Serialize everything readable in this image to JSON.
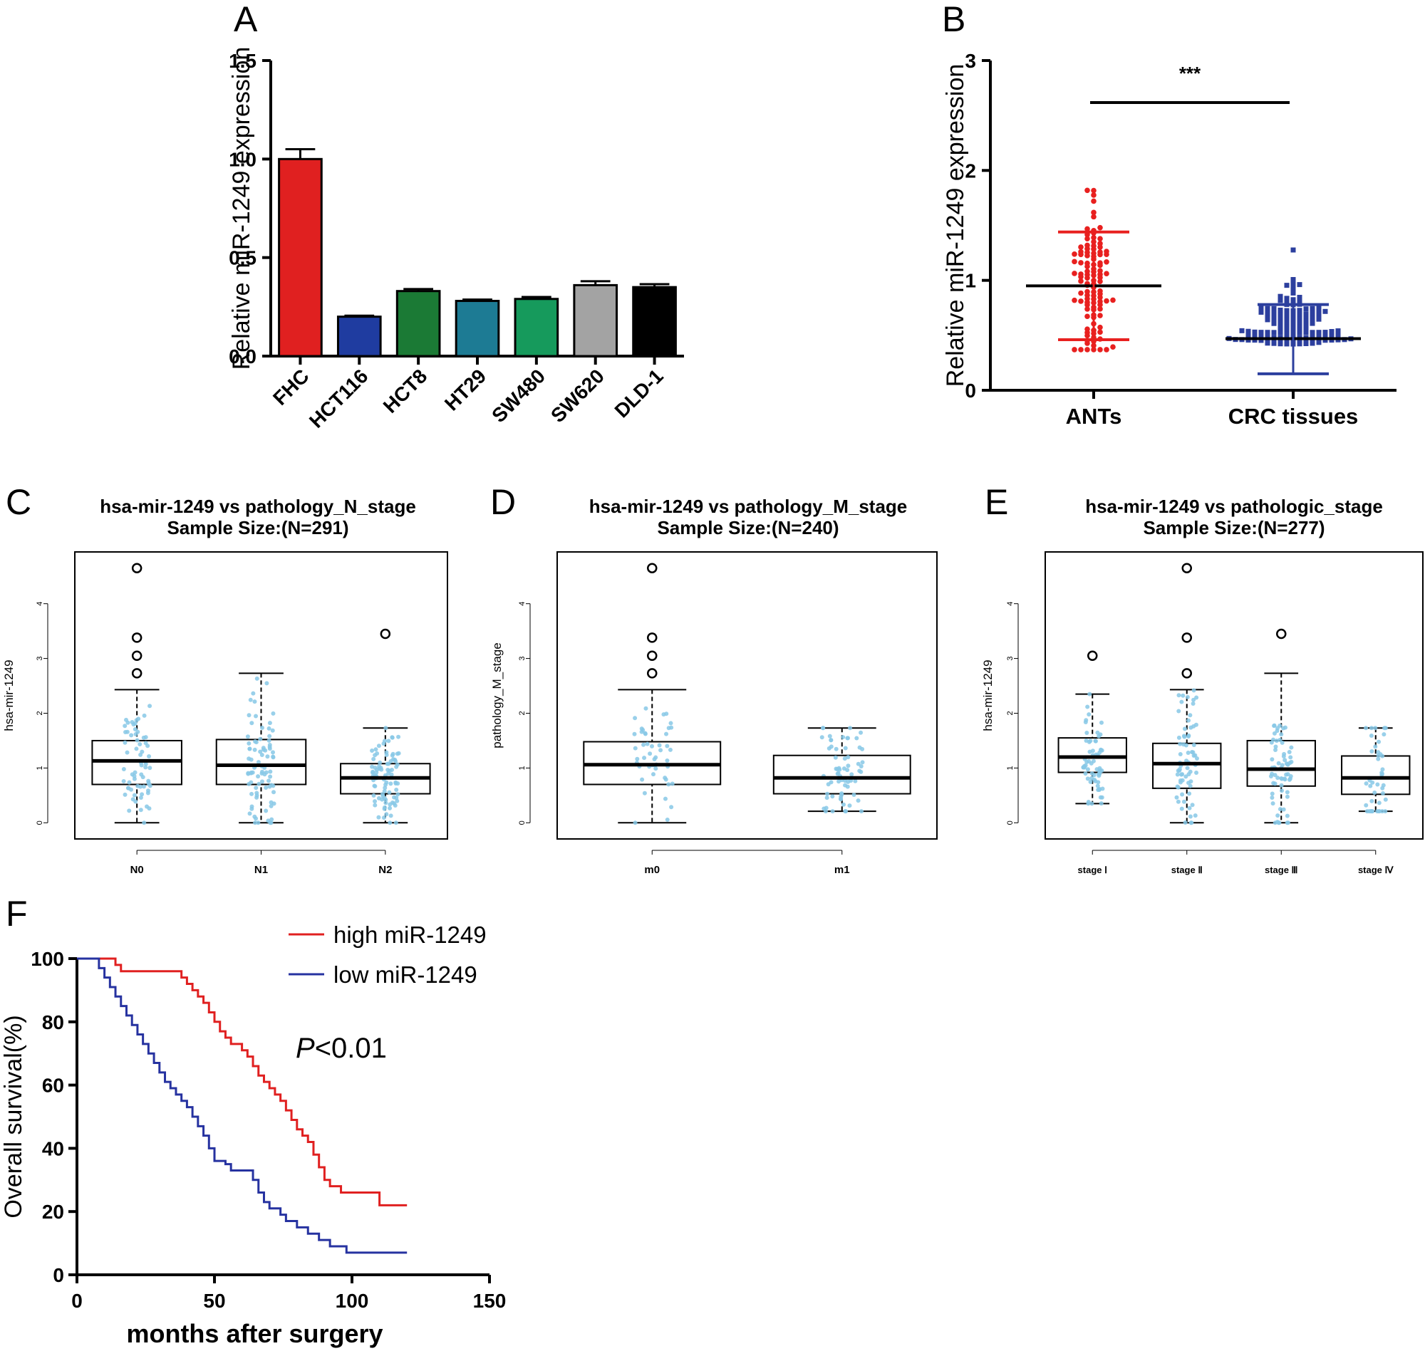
{
  "panels": {
    "A": {
      "letter": "A"
    },
    "B": {
      "letter": "B"
    },
    "C": {
      "letter": "C"
    },
    "D": {
      "letter": "D"
    },
    "E": {
      "letter": "E"
    },
    "F": {
      "letter": "F"
    }
  },
  "chart_data": [
    {
      "id": "A",
      "type": "bar",
      "title": "",
      "xlabel": "",
      "ylabel": "Relative miR-1249 expression",
      "categories": [
        "FHC",
        "HCT116",
        "HCT8",
        "HT29",
        "SW480",
        "SW620",
        "DLD-1"
      ],
      "values": [
        1.0,
        0.2,
        0.33,
        0.28,
        0.29,
        0.36,
        0.35
      ],
      "errors": [
        0.05,
        0.005,
        0.01,
        0.007,
        0.01,
        0.02,
        0.015
      ],
      "colors": [
        "#e02020",
        "#1f3ca0",
        "#1b7a35",
        "#1d7b94",
        "#169a5c",
        "#a3a3a3",
        "#000000"
      ],
      "ylim": [
        0,
        1.5
      ],
      "yticks": [
        "0.0",
        "0.5",
        "1.0",
        "1.5"
      ],
      "grid": false
    },
    {
      "id": "B",
      "type": "scatter",
      "title": "",
      "xlabel": "",
      "ylabel": "Relative miR-1249 expression",
      "categories": [
        "ANTs",
        "CRC tissues"
      ],
      "series": [
        {
          "category": "ANTs",
          "color": "#e8201f",
          "mean": 0.95,
          "sd_low": 0.46,
          "sd_high": 1.44
        },
        {
          "category": "CRC tissues",
          "color": "#2c3f9e",
          "mean": 0.47,
          "sd_low": 0.15,
          "sd_high": 0.78
        }
      ],
      "ylim": [
        0,
        3
      ],
      "yticks": [
        "0",
        "1",
        "2",
        "3"
      ],
      "annotation": "***"
    },
    {
      "id": "C",
      "type": "box",
      "title_line1": "hsa-mir-1249 vs pathology_N_stage",
      "title_line2": "Sample Size:(N=291)",
      "ylabel": "hsa-mir-1249",
      "yticks": [
        "0",
        "1",
        "2",
        "3",
        "4"
      ],
      "ylim": [
        -0.1,
        4.75
      ],
      "categories": [
        "N0",
        "N1",
        "N2"
      ],
      "boxes": [
        {
          "min": 0,
          "q1": 0.7,
          "median": 1.13,
          "q3": 1.5,
          "max": 2.43,
          "outliers": [
            2.73,
            3.05,
            3.38,
            4.65
          ]
        },
        {
          "min": 0,
          "q1": 0.7,
          "median": 1.05,
          "q3": 1.52,
          "max": 2.73,
          "outliers": []
        },
        {
          "min": 0,
          "q1": 0.53,
          "median": 0.82,
          "q3": 1.08,
          "max": 1.73,
          "outliers": [
            3.45
          ]
        }
      ]
    },
    {
      "id": "D",
      "type": "box",
      "title_line1": "hsa-mir-1249 vs pathology_M_stage",
      "title_line2": "Sample Size:(N=240)",
      "ylabel": "pathology_M_stage",
      "yticks": [
        "0",
        "1",
        "2",
        "3",
        "4"
      ],
      "ylim": [
        -0.1,
        4.75
      ],
      "categories": [
        "m0",
        "m1"
      ],
      "boxes": [
        {
          "min": 0,
          "q1": 0.7,
          "median": 1.06,
          "q3": 1.48,
          "max": 2.43,
          "outliers": [
            2.73,
            3.05,
            3.38,
            4.65
          ]
        },
        {
          "min": 0.21,
          "q1": 0.53,
          "median": 0.82,
          "q3": 1.23,
          "max": 1.73,
          "outliers": []
        }
      ]
    },
    {
      "id": "E",
      "type": "box",
      "title_line1": "hsa-mir-1249 vs pathologic_stage",
      "title_line2": "Sample Size:(N=277)",
      "ylabel": "hsa-mir-1249",
      "yticks": [
        "0",
        "1",
        "2",
        "3",
        "4"
      ],
      "ylim": [
        -0.1,
        4.75
      ],
      "categories": [
        "stage Ⅰ",
        "stage Ⅱ",
        "stage Ⅲ",
        "stage Ⅳ"
      ],
      "boxes": [
        {
          "min": 0.35,
          "q1": 0.92,
          "median": 1.2,
          "q3": 1.55,
          "max": 2.35,
          "outliers": [
            3.05
          ]
        },
        {
          "min": 0,
          "q1": 0.63,
          "median": 1.08,
          "q3": 1.45,
          "max": 2.43,
          "outliers": [
            2.73,
            3.38,
            4.65
          ]
        },
        {
          "min": 0,
          "q1": 0.67,
          "median": 0.98,
          "q3": 1.5,
          "max": 2.73,
          "outliers": [
            3.45
          ]
        },
        {
          "min": 0.21,
          "q1": 0.52,
          "median": 0.82,
          "q3": 1.22,
          "max": 1.73,
          "outliers": []
        }
      ]
    },
    {
      "id": "F",
      "type": "line",
      "title": "",
      "xlabel": "months after surgery",
      "ylabel": "Overall survival(%)",
      "xlim": [
        0,
        150
      ],
      "ylim": [
        0,
        100
      ],
      "xticks": [
        "0",
        "50",
        "100",
        "150"
      ],
      "yticks": [
        "0",
        "20",
        "40",
        "60",
        "80",
        "100"
      ],
      "annotation_italic": "P",
      "annotation_rest": "<0.01",
      "series": [
        {
          "name": "high miR-1249",
          "color": "#e02020",
          "x": [
            0,
            7,
            14,
            16,
            36,
            38,
            40,
            42,
            44,
            46,
            48,
            50,
            52,
            54,
            56,
            58,
            60,
            62,
            64,
            66,
            68,
            70,
            72,
            74,
            76,
            78,
            80,
            82,
            84,
            86,
            88,
            90,
            92,
            96,
            100,
            110,
            120
          ],
          "y": [
            100,
            100,
            98,
            96,
            96,
            94,
            92,
            90,
            88,
            86,
            83,
            80,
            77,
            75,
            73,
            73,
            71,
            69,
            66,
            63,
            61,
            59,
            57,
            55,
            52,
            49,
            46,
            44,
            42,
            38,
            34,
            30,
            28,
            26,
            26,
            22,
            22
          ]
        },
        {
          "name": "low miR-1249",
          "color": "#2632a0",
          "x": [
            0,
            6,
            8,
            10,
            12,
            14,
            16,
            18,
            20,
            22,
            24,
            26,
            28,
            30,
            32,
            34,
            36,
            38,
            40,
            42,
            44,
            46,
            48,
            50,
            54,
            56,
            60,
            64,
            66,
            68,
            70,
            74,
            76,
            80,
            84,
            88,
            92,
            98,
            120
          ],
          "y": [
            100,
            100,
            97,
            94,
            91,
            88,
            85,
            82,
            79,
            76,
            73,
            70,
            67,
            64,
            61,
            59,
            57,
            55,
            53,
            50,
            47,
            44,
            40,
            36,
            35,
            33,
            33,
            30,
            26,
            23,
            21,
            19,
            17,
            15,
            13,
            11,
            9,
            7,
            7
          ]
        }
      ]
    }
  ]
}
